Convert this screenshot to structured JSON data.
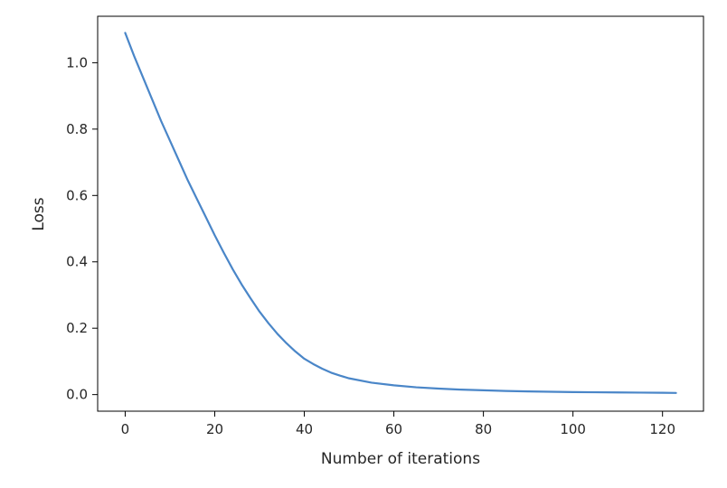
{
  "chart_data": {
    "type": "line",
    "title": "",
    "xlabel": "Number of iterations",
    "ylabel": "Loss",
    "xlim": [
      -6.15,
      129.15
    ],
    "ylim": [
      -0.05,
      1.14
    ],
    "xticks": [
      0,
      20,
      40,
      60,
      80,
      100,
      120
    ],
    "xtick_labels": [
      "0",
      "20",
      "40",
      "60",
      "80",
      "100",
      "120"
    ],
    "yticks": [
      0.0,
      0.2,
      0.4,
      0.6,
      0.8,
      1.0
    ],
    "ytick_labels": [
      "0.0",
      "0.2",
      "0.4",
      "0.6",
      "0.8",
      "1.0"
    ],
    "grid": false,
    "series": [
      {
        "color": "#4a86c8",
        "x": [
          0,
          2,
          4,
          6,
          8,
          10,
          12,
          14,
          16,
          18,
          20,
          22,
          24,
          26,
          28,
          30,
          32,
          34,
          36,
          38,
          40,
          42,
          44,
          46,
          48,
          50,
          55,
          60,
          65,
          70,
          75,
          80,
          85,
          90,
          95,
          100,
          105,
          110,
          115,
          120,
          123
        ],
        "y": [
          1.09,
          1.02,
          0.955,
          0.89,
          0.825,
          0.765,
          0.705,
          0.645,
          0.59,
          0.535,
          0.48,
          0.428,
          0.378,
          0.332,
          0.29,
          0.25,
          0.215,
          0.183,
          0.155,
          0.13,
          0.108,
          0.092,
          0.078,
          0.066,
          0.057,
          0.049,
          0.036,
          0.028,
          0.022,
          0.018,
          0.015,
          0.013,
          0.011,
          0.0095,
          0.0085,
          0.0075,
          0.007,
          0.0065,
          0.006,
          0.0055,
          0.005
        ]
      }
    ]
  }
}
